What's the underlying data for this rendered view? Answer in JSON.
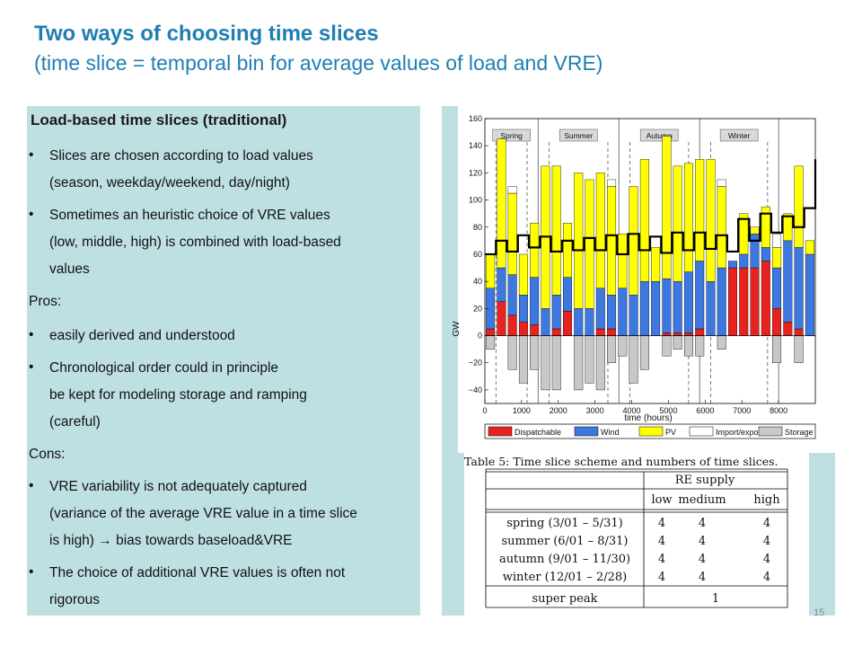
{
  "slide": {
    "title": "Two ways of choosing time slices",
    "subtitle": "(time slice = temporal bin for average values of load and VRE)",
    "page_number": "15"
  },
  "left_panel": {
    "heading": "Load-based time slices (traditional)",
    "bullet1_line1": "Slices are chosen according to load values",
    "bullet1_line2": "(season, weekday/weekend, day/night)",
    "bullet2_line1": "Sometimes an heuristic choice of VRE values",
    "bullet2_line2": "(low, middle, high) is combined with load-based",
    "bullet2_line3": "values",
    "pros_label": "Pros:",
    "pro1": "easily derived and understood",
    "pro2_line1": "Chronological order could in principle",
    "pro2_line2": "be kept for modeling storage and ramping",
    "pro2_line3": "(careful)",
    "cons_label": "Cons:",
    "con1_line1": "VRE variability is not adequately captured",
    "con1_line2": "(variance of the average VRE value in a time slice",
    "con1_line3": "is high) → bias towards baseload&VRE",
    "con2_line1": "The choice of additional VRE values is often not",
    "con2_line2": "rigorous"
  },
  "chart_data": {
    "type": "bar",
    "title": "",
    "xlabel": "time (hours)",
    "ylabel": "GW",
    "xlim": [
      0,
      9000
    ],
    "ylim": [
      -50,
      160
    ],
    "xticks": [
      "0",
      "1000",
      "2000",
      "3000",
      "4000",
      "5000",
      "6000",
      "7000",
      "8000"
    ],
    "yticks": [
      "160",
      "140",
      "120",
      "100",
      "80",
      "60",
      "40",
      "20",
      "0",
      "−20",
      "−40"
    ],
    "season_labels": [
      "Spring",
      "Summer",
      "Autumn",
      "Winter"
    ],
    "season_boundaries_hours": [
      0,
      1450,
      3650,
      5850,
      8000
    ],
    "colors": {
      "Dispatchable": "#e8231f",
      "Wind": "#3c78e0",
      "PV": "#ffff00",
      "Import/export": "#ffffff",
      "Storage": "#c8c8c8",
      "load": "#000000"
    },
    "legend": [
      "Dispatchable",
      "Wind",
      "PV",
      "Import/export",
      "Storage"
    ],
    "legend_placement": "bottom",
    "stacked_bars": [
      {
        "x": 150,
        "disp": 5,
        "wind": 30,
        "pv": 25,
        "imp": 0,
        "stor": -10
      },
      {
        "x": 450,
        "disp": 25,
        "wind": 25,
        "pv": 95,
        "imp": 0,
        "stor": 0
      },
      {
        "x": 750,
        "disp": 15,
        "wind": 30,
        "pv": 60,
        "imp": 5,
        "stor": -25
      },
      {
        "x": 1050,
        "disp": 10,
        "wind": 20,
        "pv": 30,
        "imp": 0,
        "stor": -35
      },
      {
        "x": 1350,
        "disp": 8,
        "wind": 35,
        "pv": 40,
        "imp": 0,
        "stor": -25
      },
      {
        "x": 1650,
        "disp": 0,
        "wind": 20,
        "pv": 105,
        "imp": 0,
        "stor": -40
      },
      {
        "x": 1950,
        "disp": 5,
        "wind": 25,
        "pv": 95,
        "imp": 0,
        "stor": -40
      },
      {
        "x": 2250,
        "disp": 18,
        "wind": 25,
        "pv": 40,
        "imp": 0,
        "stor": 0
      },
      {
        "x": 2550,
        "disp": 0,
        "wind": 20,
        "pv": 100,
        "imp": 0,
        "stor": -40
      },
      {
        "x": 2850,
        "disp": 0,
        "wind": 20,
        "pv": 95,
        "imp": 0,
        "stor": -35
      },
      {
        "x": 3150,
        "disp": 5,
        "wind": 30,
        "pv": 85,
        "imp": 0,
        "stor": -40
      },
      {
        "x": 3450,
        "disp": 5,
        "wind": 25,
        "pv": 80,
        "imp": 5,
        "stor": -20
      },
      {
        "x": 3750,
        "disp": 0,
        "wind": 35,
        "pv": 40,
        "imp": 0,
        "stor": -15
      },
      {
        "x": 4050,
        "disp": 0,
        "wind": 30,
        "pv": 80,
        "imp": 0,
        "stor": -35
      },
      {
        "x": 4350,
        "disp": 0,
        "wind": 40,
        "pv": 90,
        "imp": 0,
        "stor": -25
      },
      {
        "x": 4650,
        "disp": 0,
        "wind": 40,
        "pv": 25,
        "imp": 0,
        "stor": 0
      },
      {
        "x": 4950,
        "disp": 2,
        "wind": 40,
        "pv": 105,
        "imp": 0,
        "stor": -15
      },
      {
        "x": 5250,
        "disp": 2,
        "wind": 38,
        "pv": 85,
        "imp": 0,
        "stor": -10
      },
      {
        "x": 5550,
        "disp": 2,
        "wind": 45,
        "pv": 80,
        "imp": 0,
        "stor": -15
      },
      {
        "x": 5850,
        "disp": 5,
        "wind": 50,
        "pv": 75,
        "imp": 0,
        "stor": -15
      },
      {
        "x": 6150,
        "disp": 0,
        "wind": 40,
        "pv": 90,
        "imp": 0,
        "stor": 0
      },
      {
        "x": 6450,
        "disp": 0,
        "wind": 50,
        "pv": 60,
        "imp": 5,
        "stor": -10
      },
      {
        "x": 6750,
        "disp": 50,
        "wind": 5,
        "pv": 0,
        "imp": 0,
        "stor": 0
      },
      {
        "x": 7050,
        "disp": 50,
        "wind": 10,
        "pv": 30,
        "imp": 0,
        "stor": 0
      },
      {
        "x": 7350,
        "disp": 50,
        "wind": 25,
        "pv": 5,
        "imp": 0,
        "stor": 0
      },
      {
        "x": 7650,
        "disp": 55,
        "wind": 10,
        "pv": 30,
        "imp": 0,
        "stor": 0
      },
      {
        "x": 7950,
        "disp": 20,
        "wind": 30,
        "pv": 15,
        "imp": 10,
        "stor": -20
      },
      {
        "x": 8250,
        "disp": 10,
        "wind": 60,
        "pv": 20,
        "imp": 0,
        "stor": 0
      },
      {
        "x": 8550,
        "disp": 5,
        "wind": 60,
        "pv": 60,
        "imp": 0,
        "stor": -20
      },
      {
        "x": 8850,
        "disp": 0,
        "wind": 60,
        "pv": 10,
        "imp": 0,
        "stor": 0
      }
    ],
    "load": {
      "x": [
        0,
        300,
        600,
        900,
        1200,
        1500,
        1800,
        2100,
        2400,
        2700,
        3000,
        3300,
        3600,
        3900,
        4200,
        4500,
        4800,
        5100,
        5400,
        5700,
        6000,
        6300,
        6600,
        6900,
        7200,
        7500,
        7800,
        8100,
        8400,
        8700,
        9000
      ],
      "y": [
        60,
        70,
        62,
        74,
        65,
        73,
        62,
        70,
        63,
        72,
        63,
        74,
        60,
        75,
        63,
        73,
        61,
        76,
        63,
        76,
        64,
        74,
        62,
        86,
        70,
        90,
        76,
        88,
        80,
        94,
        130
      ]
    }
  },
  "re_table": {
    "caption": "Table 5: Time slice scheme and numbers of time slices.",
    "group_header": "RE supply",
    "columns": [
      "low",
      "medium",
      "high"
    ],
    "rows": [
      {
        "label": "spring (3/01 – 5/31)",
        "values": [
          "4",
          "4",
          "4"
        ]
      },
      {
        "label": "summer (6/01 – 8/31)",
        "values": [
          "4",
          "4",
          "4"
        ]
      },
      {
        "label": "autumn (9/01 – 11/30)",
        "values": [
          "4",
          "4",
          "4"
        ]
      },
      {
        "label": "winter (12/01 – 2/28)",
        "values": [
          "4",
          "4",
          "4"
        ]
      }
    ],
    "super_peak_label": "super peak",
    "super_peak_value": "1"
  }
}
